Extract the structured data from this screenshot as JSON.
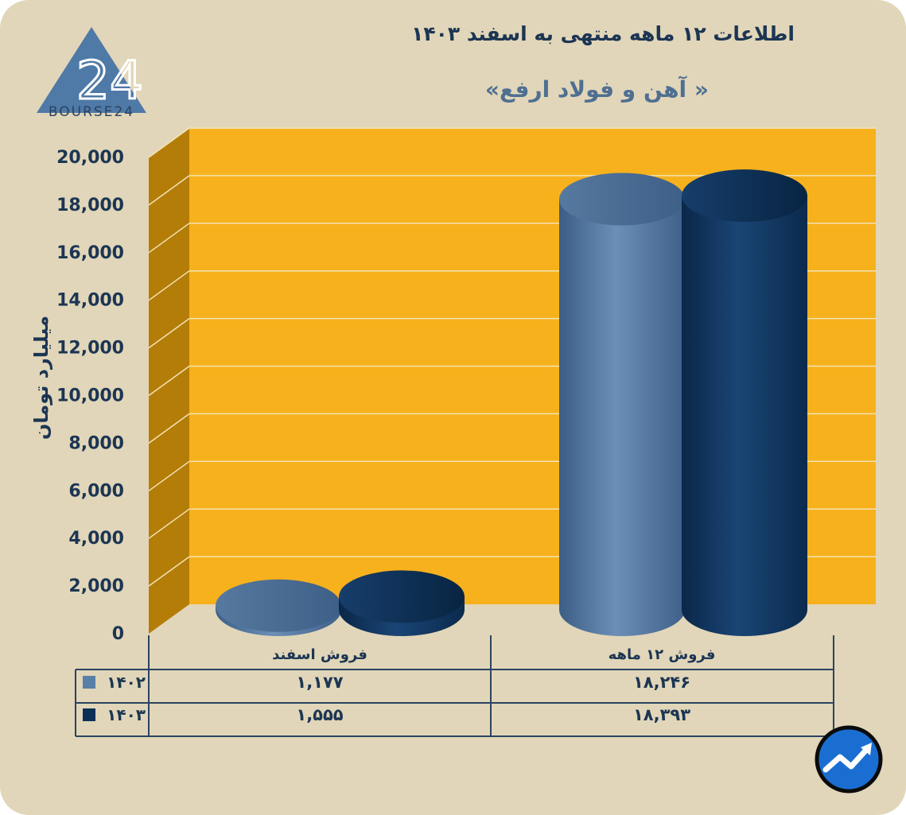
{
  "header": {
    "title": "اطلاعات ۱۲ ماهه منتهی به اسفند ۱۴۰۳",
    "subtitle": "« آهن و فولاد ارفع»"
  },
  "logo": {
    "text": "BOURSE24",
    "mark": "24"
  },
  "chart_data": {
    "type": "bar",
    "title": "اطلاعات ۱۲ ماهه منتهی به اسفند ۱۴۰۳",
    "subtitle": "« آهن و فولاد ارفع»",
    "ylabel": "میلیارد تومان",
    "xlabel": "",
    "ylim": [
      0,
      20000
    ],
    "y_ticks": [
      "0",
      "2,000",
      "4,000",
      "6,000",
      "8,000",
      "10,000",
      "12,000",
      "14,000",
      "16,000",
      "18,000",
      "20,000"
    ],
    "categories": [
      "فروش اسفند",
      "فروش ۱۲ ماهه"
    ],
    "series": [
      {
        "name": "۱۴۰۲",
        "values": [
          1177,
          18246
        ],
        "labels": [
          "۱,۱۷۷",
          "۱۸,۲۴۶"
        ],
        "color": "#5a7fa8"
      },
      {
        "name": "۱۴۰۳",
        "values": [
          1555,
          18393
        ],
        "labels": [
          "۱,۵۵۵",
          "۱۸,۳۹۳"
        ],
        "color": "#0d2f56"
      }
    ],
    "grid": true,
    "legend": "data-table-below",
    "background_color": "#f7b11c",
    "wall_color": "#b47d08"
  },
  "colors": {
    "card": "#e1d6b9",
    "text": "#1c3553",
    "accent": "#4f6f92"
  },
  "badge": {
    "icon": "trend-chart-icon"
  }
}
